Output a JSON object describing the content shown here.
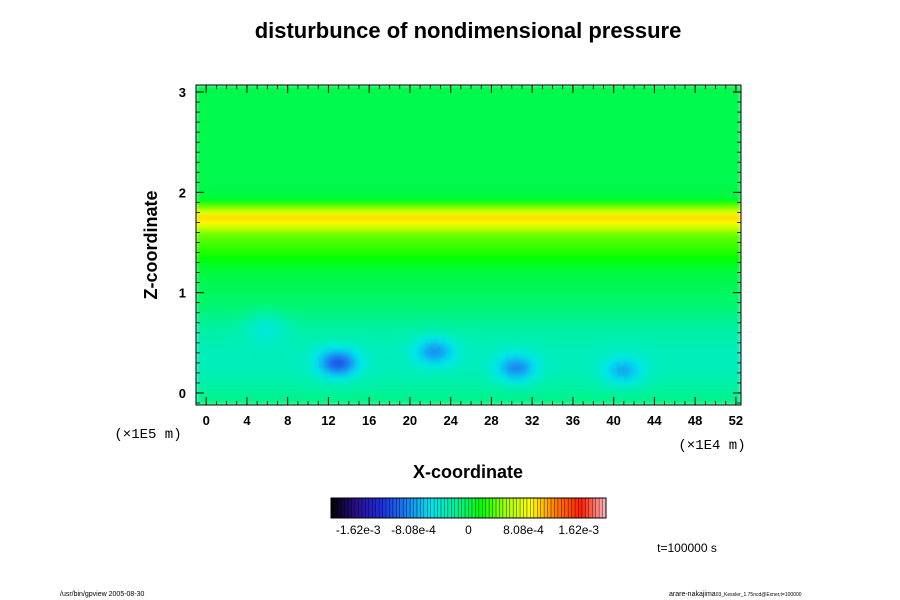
{
  "chart_data": {
    "type": "heatmap",
    "title": "disturbunce of nondimensional pressure",
    "xlabel": "X-coordinate",
    "ylabel": "Z-coordinate",
    "x_scale_label": "(×1E4 m)",
    "y_scale_label": "(×1E5 m)",
    "x_ticks": [
      "0",
      "4",
      "8",
      "12",
      "16",
      "20",
      "24",
      "28",
      "32",
      "36",
      "40",
      "44",
      "48",
      "52"
    ],
    "y_ticks": [
      "0",
      "1",
      "2",
      "3"
    ],
    "xlim": [
      -1,
      52.5
    ],
    "ylim": [
      -0.12,
      3.07
    ],
    "colorbar": {
      "range": [
        -0.00202,
        0.00202
      ],
      "tick_labels": [
        "-1.62e-3",
        "-8.08e-4",
        "0",
        "8.08e-4",
        "1.62e-3"
      ],
      "tick_values": [
        -0.00162,
        -0.000808,
        0,
        0.000808,
        0.00162
      ]
    },
    "field": {
      "background_value": 0,
      "bands": [
        {
          "z_center": 1.75,
          "z_width": 0.11,
          "value": 0.00085
        },
        {
          "z_center": 1.55,
          "z_width": 0.25,
          "value": 0.00035
        },
        {
          "z_center": 0.35,
          "z_width": 0.45,
          "value": -0.00032
        }
      ],
      "anomalies": [
        {
          "x": 13,
          "z": 0.3,
          "value": -0.0008
        },
        {
          "x": 22.5,
          "z": 0.42,
          "value": -0.00055
        },
        {
          "x": 30.5,
          "z": 0.25,
          "value": -0.0006
        },
        {
          "x": 41,
          "z": 0.22,
          "value": -0.00048
        },
        {
          "x": 6,
          "z": 0.65,
          "value": -0.00025
        }
      ]
    }
  },
  "annotations": {
    "time": "t=100000 s",
    "footer_left": "/usr/bin/gpview 2005-08-30",
    "footer_right": "arare-nakajima",
    "footer_right_sub": "03_Kessler_1.75ncd@Exner,t=100000"
  },
  "colors": {
    "palette": [
      "#000000",
      "#2b0f8a",
      "#1c2ce0",
      "#1a7ff2",
      "#00e6ee",
      "#00f29b",
      "#00ff00",
      "#a3ff00",
      "#ffff00",
      "#ff7a00",
      "#ff2000",
      "#ffb8c0"
    ]
  }
}
